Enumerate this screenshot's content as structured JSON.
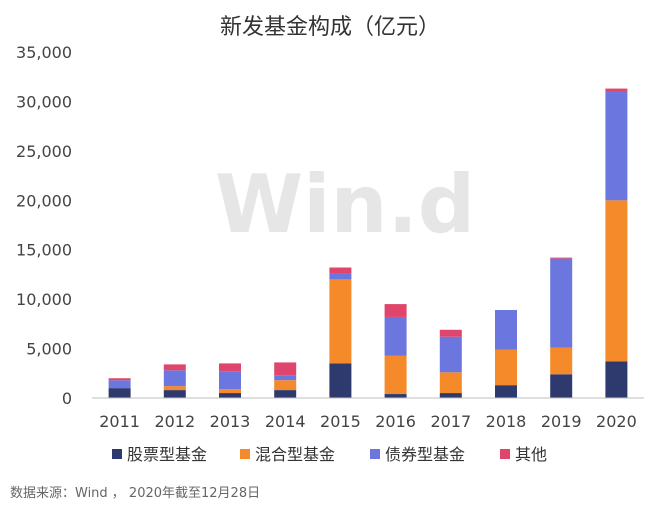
{
  "chart_data": {
    "type": "bar",
    "stacked": true,
    "title": "新发基金构成（亿元）",
    "categories": [
      "2011",
      "2012",
      "2013",
      "2014",
      "2015",
      "2016",
      "2017",
      "2018",
      "2019",
      "2020"
    ],
    "series": [
      {
        "name": "股票型基金",
        "color": "#2E3A6E",
        "values": [
          1000,
          800,
          500,
          800,
          3500,
          400,
          500,
          1300,
          2400,
          3700
        ]
      },
      {
        "name": "混合型基金",
        "color": "#F58A2A",
        "values": [
          0,
          400,
          400,
          1000,
          8500,
          3900,
          2100,
          3600,
          2700,
          16300
        ]
      },
      {
        "name": "债券型基金",
        "color": "#6B77DE",
        "values": [
          800,
          1600,
          1800,
          500,
          600,
          3900,
          3600,
          4000,
          9000,
          11000
        ]
      },
      {
        "name": "其他",
        "color": "#E0456B",
        "values": [
          200,
          600,
          800,
          1300,
          600,
          1300,
          700,
          0,
          100,
          300
        ]
      }
    ],
    "ylim": [
      0,
      35000
    ],
    "yticks": [
      0,
      5000,
      10000,
      15000,
      20000,
      25000,
      30000,
      35000
    ],
    "ytick_labels": [
      "0",
      "5,000",
      "10,000",
      "15,000",
      "20,000",
      "25,000",
      "30,000",
      "35,000"
    ],
    "legend_position": "bottom",
    "grid": false,
    "source": "数据来源：Wind ， 2020年截至12月28日",
    "watermark": "Win.d"
  }
}
